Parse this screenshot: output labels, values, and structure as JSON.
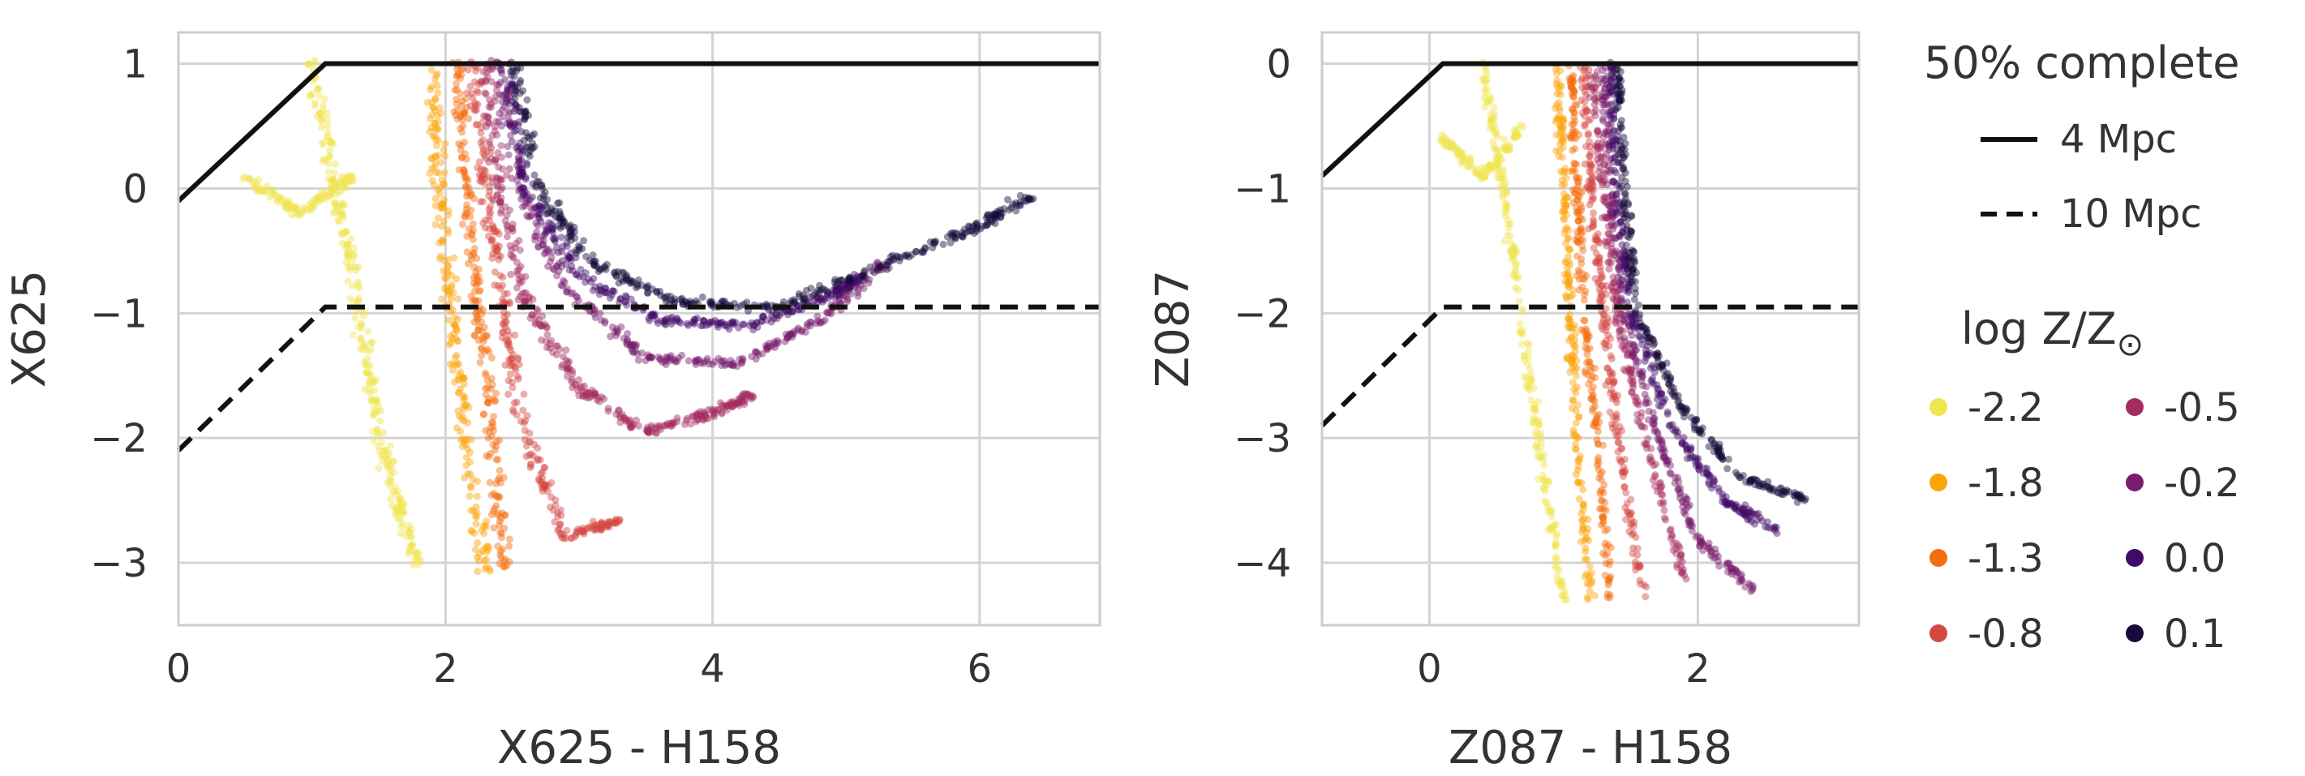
{
  "chart_data": [
    {
      "type": "scatter",
      "xlabel": "X625 - H158",
      "ylabel": "X625",
      "xlim": [
        0,
        6.9
      ],
      "ylim": [
        1.25,
        -3.5
      ],
      "y_inverted": true,
      "grid": true,
      "xticks": [
        "0",
        "2",
        "4",
        "6"
      ],
      "yticks": [
        "−3",
        "−2",
        "−1",
        "0",
        "1"
      ],
      "xtick_values": [
        0,
        2,
        4,
        6
      ],
      "ytick_values": [
        -3,
        -2,
        -1,
        0,
        1
      ],
      "completeness_lines": [
        {
          "name": "4 Mpc",
          "style": "solid",
          "x": [
            0,
            1.1,
            6.9
          ],
          "y": [
            -0.1,
            1.0,
            1.0
          ]
        },
        {
          "name": "10 Mpc",
          "style": "dashed",
          "x": [
            0,
            1.1,
            6.9
          ],
          "y": [
            -2.1,
            -0.95,
            -0.95
          ]
        }
      ],
      "series": [
        {
          "name": "-2.2",
          "color": "#f0e44f",
          "tracks": [
            [
              [
                1.0,
                1.0
              ],
              [
                1.15,
                0.1
              ],
              [
                1.3,
                -0.6
              ],
              [
                1.45,
                -1.6
              ],
              [
                1.6,
                -2.4
              ],
              [
                1.8,
                -3.05
              ]
            ],
            [
              [
                0.5,
                0.1
              ],
              [
                0.9,
                -0.2
              ],
              [
                1.3,
                0.1
              ]
            ]
          ]
        },
        {
          "name": "-1.8",
          "color": "#fca50a",
          "tracks": [
            [
              [
                1.9,
                1.0
              ],
              [
                1.95,
                0.0
              ],
              [
                2.05,
                -1.0
              ],
              [
                2.15,
                -2.0
              ],
              [
                2.3,
                -3.05
              ]
            ]
          ]
        },
        {
          "name": "-1.3",
          "color": "#f46d0e",
          "tracks": [
            [
              [
                2.1,
                1.0
              ],
              [
                2.15,
                0.0
              ],
              [
                2.25,
                -1.0
              ],
              [
                2.35,
                -2.0
              ],
              [
                2.45,
                -3.05
              ]
            ]
          ]
        },
        {
          "name": "-0.8",
          "color": "#d44842",
          "tracks": [
            [
              [
                2.2,
                1.0
              ],
              [
                2.3,
                0.0
              ],
              [
                2.45,
                -1.0
              ],
              [
                2.6,
                -2.0
              ],
              [
                2.9,
                -2.8
              ],
              [
                3.3,
                -2.65
              ]
            ]
          ]
        },
        {
          "name": "-0.5",
          "color": "#a52c60",
          "tracks": [
            [
              [
                2.3,
                1.0
              ],
              [
                2.4,
                0.0
              ],
              [
                2.6,
                -0.9
              ],
              [
                3.0,
                -1.6
              ],
              [
                3.5,
                -1.95
              ],
              [
                4.0,
                -1.8
              ],
              [
                4.3,
                -1.65
              ]
            ]
          ]
        },
        {
          "name": "-0.2",
          "color": "#781c6d",
          "tracks": [
            [
              [
                2.4,
                1.0
              ],
              [
                2.55,
                0.0
              ],
              [
                2.9,
                -0.8
              ],
              [
                3.5,
                -1.35
              ],
              [
                4.2,
                -1.4
              ],
              [
                4.8,
                -1.05
              ],
              [
                5.3,
                -0.6
              ]
            ]
          ]
        },
        {
          "name": "0.0",
          "color": "#420a68",
          "tracks": [
            [
              [
                2.45,
                1.0
              ],
              [
                2.6,
                0.0
              ],
              [
                3.0,
                -0.7
              ],
              [
                3.6,
                -1.05
              ],
              [
                4.3,
                -1.1
              ],
              [
                4.9,
                -0.85
              ],
              [
                5.1,
                -0.7
              ]
            ]
          ]
        },
        {
          "name": "0.1",
          "color": "#160b39",
          "tracks": [
            [
              [
                2.5,
                1.0
              ],
              [
                2.7,
                0.0
              ],
              [
                3.1,
                -0.6
              ],
              [
                3.7,
                -0.9
              ],
              [
                4.5,
                -0.95
              ],
              [
                5.3,
                -0.6
              ],
              [
                6.0,
                -0.3
              ],
              [
                6.4,
                -0.05
              ]
            ]
          ]
        }
      ]
    },
    {
      "type": "scatter",
      "xlabel": "Z087 - H158",
      "ylabel": "Z087",
      "xlim": [
        -0.8,
        3.2
      ],
      "ylim": [
        0.25,
        -4.5
      ],
      "y_inverted": true,
      "grid": true,
      "xticks": [
        "0",
        "2"
      ],
      "yticks": [
        "−4",
        "−3",
        "−2",
        "−1",
        "0"
      ],
      "xtick_values": [
        0,
        2
      ],
      "ytick_values": [
        -4,
        -3,
        -2,
        -1,
        0
      ],
      "completeness_lines": [
        {
          "name": "4 Mpc",
          "style": "solid",
          "x": [
            -0.8,
            0.1,
            3.2
          ],
          "y": [
            -0.9,
            0.0,
            0.0
          ]
        },
        {
          "name": "10 Mpc",
          "style": "dashed",
          "x": [
            -0.8,
            0.1,
            3.2
          ],
          "y": [
            -2.9,
            -1.95,
            -1.95
          ]
        }
      ],
      "series": [
        {
          "name": "-2.2",
          "color": "#f0e44f",
          "tracks": [
            [
              [
                0.4,
                0.0
              ],
              [
                0.55,
                -1.0
              ],
              [
                0.7,
                -2.2
              ],
              [
                0.85,
                -3.3
              ],
              [
                1.0,
                -4.3
              ]
            ],
            [
              [
                0.1,
                -0.6
              ],
              [
                0.4,
                -0.9
              ],
              [
                0.7,
                -0.5
              ]
            ]
          ]
        },
        {
          "name": "-1.8",
          "color": "#fca50a",
          "tracks": [
            [
              [
                0.95,
                0.0
              ],
              [
                1.0,
                -1.0
              ],
              [
                1.05,
                -2.0
              ],
              [
                1.1,
                -3.0
              ],
              [
                1.2,
                -4.3
              ]
            ]
          ]
        },
        {
          "name": "-1.3",
          "color": "#f46d0e",
          "tracks": [
            [
              [
                1.05,
                0.0
              ],
              [
                1.1,
                -1.0
              ],
              [
                1.15,
                -2.0
              ],
              [
                1.25,
                -3.0
              ],
              [
                1.35,
                -4.3
              ]
            ]
          ]
        },
        {
          "name": "-0.8",
          "color": "#d44842",
          "tracks": [
            [
              [
                1.15,
                0.0
              ],
              [
                1.2,
                -1.0
              ],
              [
                1.3,
                -2.0
              ],
              [
                1.4,
                -3.0
              ],
              [
                1.6,
                -4.3
              ]
            ]
          ]
        },
        {
          "name": "-0.5",
          "color": "#a52c60",
          "tracks": [
            [
              [
                1.2,
                0.0
              ],
              [
                1.3,
                -1.0
              ],
              [
                1.4,
                -2.0
              ],
              [
                1.6,
                -3.0
              ],
              [
                1.9,
                -4.1
              ]
            ]
          ]
        },
        {
          "name": "-0.2",
          "color": "#781c6d",
          "tracks": [
            [
              [
                1.3,
                0.0
              ],
              [
                1.35,
                -1.0
              ],
              [
                1.45,
                -2.0
              ],
              [
                1.7,
                -3.0
              ],
              [
                2.0,
                -3.8
              ],
              [
                2.4,
                -4.2
              ]
            ]
          ]
        },
        {
          "name": "0.0",
          "color": "#420a68",
          "tracks": [
            [
              [
                1.35,
                0.0
              ],
              [
                1.4,
                -1.0
              ],
              [
                1.5,
                -2.0
              ],
              [
                1.8,
                -2.9
              ],
              [
                2.2,
                -3.5
              ],
              [
                2.6,
                -3.75
              ]
            ]
          ]
        },
        {
          "name": "0.1",
          "color": "#160b39",
          "tracks": [
            [
              [
                1.4,
                0.0
              ],
              [
                1.45,
                -1.0
              ],
              [
                1.55,
                -2.0
              ],
              [
                1.85,
                -2.7
              ],
              [
                2.3,
                -3.3
              ],
              [
                2.8,
                -3.5
              ]
            ]
          ]
        }
      ]
    }
  ],
  "legend": {
    "completeness_title": "50% complete",
    "line_4mpc": "4 Mpc",
    "line_10mpc": "10 Mpc",
    "metallicity_title": "log Z/Z",
    "metallicity_symbol": "⊙",
    "entries": [
      "-2.2",
      "-1.8",
      "-1.3",
      "-0.8",
      "-0.5",
      "-0.2",
      "0.0",
      "0.1"
    ]
  }
}
